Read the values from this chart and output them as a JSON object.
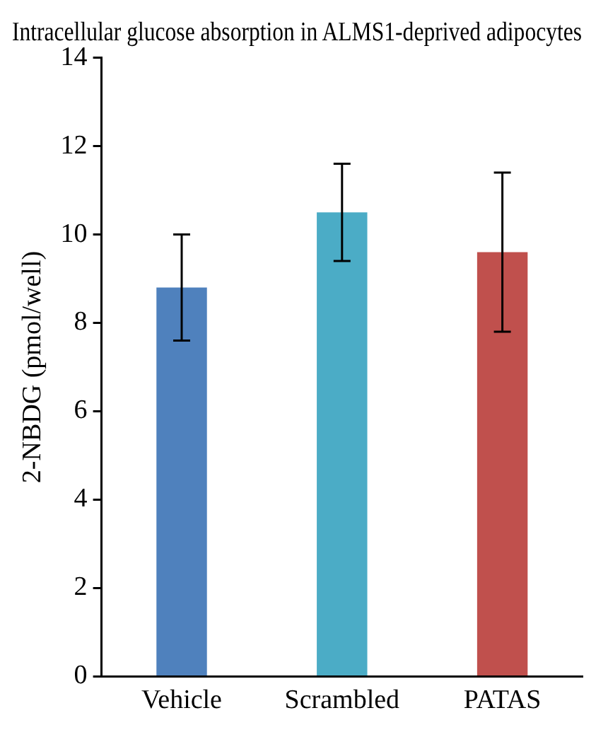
{
  "chart_data": {
    "type": "bar",
    "title": "Intracellular glucose absorption in ALMS1-deprived adipocytes",
    "ylabel": "2-NBDG (pmol/well)",
    "categories": [
      "Vehicle",
      "Scrambled",
      "PATAS"
    ],
    "values": [
      8.8,
      10.5,
      9.6
    ],
    "colors": [
      "#4f81bd",
      "#4bacc6",
      "#c0504d"
    ],
    "errors": [
      [
        7.6,
        10.0
      ],
      [
        9.4,
        11.6
      ],
      [
        7.8,
        11.4
      ]
    ],
    "ylim": [
      0,
      14
    ],
    "yticks": [
      0,
      2,
      4,
      6,
      8,
      10,
      12,
      14
    ],
    "grid": false,
    "legend": false
  }
}
